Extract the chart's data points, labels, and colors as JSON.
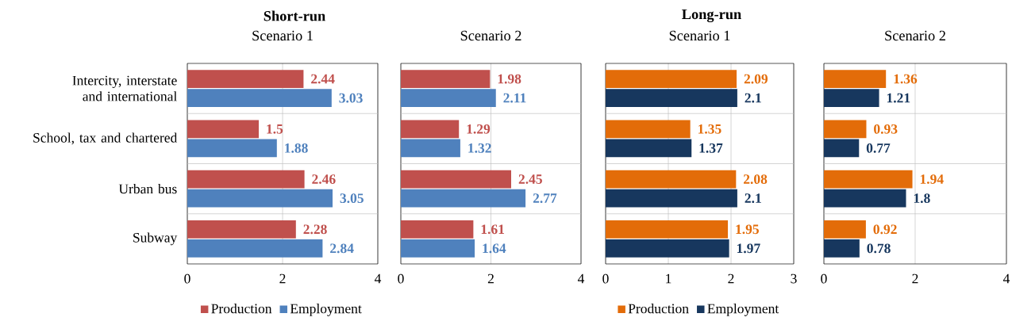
{
  "chart_data": [
    {
      "type": "bar",
      "orientation": "horizontal",
      "title": "Short-run",
      "subtitle": "Scenario 1",
      "categories": [
        "Intercity, interstate and international",
        "School, tax and chartered",
        "Urban bus",
        "Subway"
      ],
      "series": [
        {
          "name": "Production",
          "color": "#c0504d",
          "values": [
            2.44,
            1.5,
            2.46,
            2.28
          ]
        },
        {
          "name": "Employment",
          "color": "#4f81bd",
          "values": [
            3.03,
            1.88,
            3.05,
            2.84
          ]
        }
      ],
      "xlim": [
        0,
        4
      ],
      "xticks": [
        0,
        2,
        4
      ],
      "grid": true,
      "legend": "bottom",
      "data_labels": true
    },
    {
      "type": "bar",
      "orientation": "horizontal",
      "subtitle": "Scenario 2",
      "categories": [
        null,
        null,
        null,
        null
      ],
      "series": [
        {
          "color": "#c0504d",
          "values": [
            1.98,
            1.29,
            2.45,
            1.61
          ]
        },
        {
          "color": "#4f81bd",
          "values": [
            2.11,
            1.32,
            2.77,
            1.64
          ]
        }
      ],
      "xlim": [
        0,
        4
      ],
      "xticks": [
        0,
        2,
        4
      ],
      "grid": true,
      "data_labels": true,
      "tick_labels": "x"
    },
    {
      "type": "bar",
      "orientation": "horizontal",
      "title": "Long-run",
      "subtitle": "Scenario 1",
      "categories": [
        null,
        null,
        null,
        null
      ],
      "series": [
        {
          "name": "Production",
          "color": "#e36c09",
          "values": [
            2.09,
            1.35,
            2.08,
            1.95
          ]
        },
        {
          "name": "Employment",
          "color": "#17375e",
          "values": [
            2.1,
            1.37,
            2.1,
            1.97
          ]
        }
      ],
      "xlim": [
        0,
        3
      ],
      "xticks": [
        0,
        1,
        2,
        3
      ],
      "grid": true,
      "legend": "bottom",
      "data_labels": true,
      "tick_labels": "x"
    },
    {
      "type": "bar",
      "orientation": "horizontal",
      "subtitle": "Scenario 2",
      "categories": [
        null,
        null,
        null,
        null
      ],
      "series": [
        {
          "color": "#e36c09",
          "values": [
            1.36,
            0.93,
            1.94,
            0.92
          ]
        },
        {
          "color": "#17375e",
          "values": [
            1.21,
            0.77,
            1.8,
            0.78
          ]
        }
      ],
      "xlim": [
        0,
        4
      ],
      "xticks": [
        0,
        2,
        4
      ],
      "grid": true,
      "data_labels": true,
      "tick_labels": "x"
    }
  ]
}
